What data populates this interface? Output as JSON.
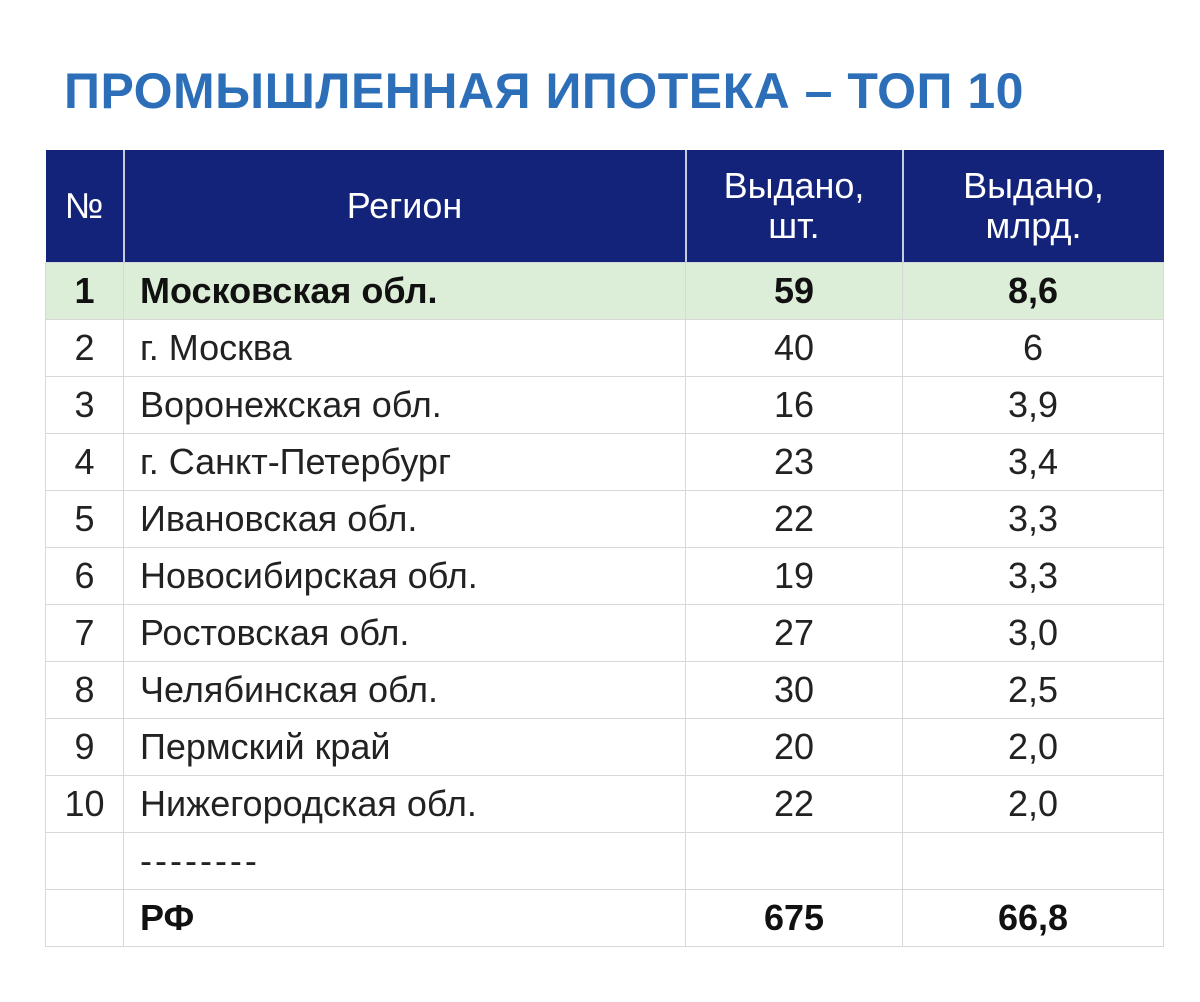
{
  "title": "ПРОМЫШЛЕННАЯ ИПОТЕКА – ТОП 10",
  "colors": {
    "title": "#2c6fb8",
    "header_bg": "#13237a",
    "highlight_row": "#ddeed8"
  },
  "table": {
    "headers": [
      "№",
      "Регион",
      "Выдано, шт.",
      "Выдано, млрд."
    ],
    "rows": [
      {
        "n": "1",
        "region": "Московская обл.",
        "count": "59",
        "amount": "8,6"
      },
      {
        "n": "2",
        "region": "г. Москва",
        "count": "40",
        "amount": "6"
      },
      {
        "n": "3",
        "region": "Воронежская обл.",
        "count": "16",
        "amount": "3,9"
      },
      {
        "n": "4",
        "region": "г. Санкт-Петербург",
        "count": "23",
        "amount": "3,4"
      },
      {
        "n": "5",
        "region": "Ивановская обл.",
        "count": "22",
        "amount": "3,3"
      },
      {
        "n": "6",
        "region": "Новосибирская обл.",
        "count": "19",
        "amount": "3,3"
      },
      {
        "n": "7",
        "region": "Ростовская обл.",
        "count": "27",
        "amount": "3,0"
      },
      {
        "n": "8",
        "region": "Челябинская обл.",
        "count": "30",
        "amount": "2,5"
      },
      {
        "n": "9",
        "region": "Пермский край",
        "count": "20",
        "amount": "2,0"
      },
      {
        "n": "10",
        "region": "Нижегородская обл.",
        "count": "22",
        "amount": "2,0"
      }
    ],
    "separator": "--------",
    "total": {
      "region": "РФ",
      "count": "675",
      "amount": "66,8"
    }
  }
}
